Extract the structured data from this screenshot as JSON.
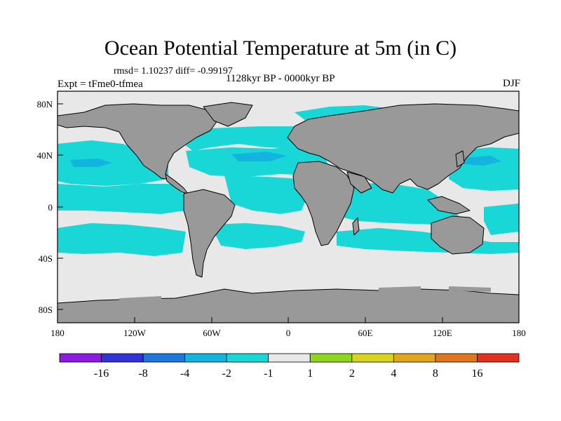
{
  "title": "Ocean Potential Temperature at 5m (in C)",
  "stats": "rmsd= 1.10237 diff= -0.99197",
  "experiment": "Expt = tFme0-tfmea",
  "period": "1128kyr BP - 0000kyr BP",
  "season": "DJF",
  "axes": {
    "x_ticks": [
      "180",
      "120W",
      "60W",
      "0",
      "60E",
      "120E",
      "180"
    ],
    "y_ticks": [
      "80N",
      "40N",
      "0",
      "40S",
      "80S"
    ]
  },
  "colors": {
    "land": "#999999",
    "no_change": "#e8e8e8",
    "cool_1": "#19d7d7",
    "cool_2": "#14b4e0",
    "coast": "#000000"
  },
  "colorbar": {
    "labels": [
      "-16",
      "-8",
      "-4",
      "-2",
      "-1",
      "1",
      "2",
      "4",
      "8",
      "16"
    ],
    "colors": [
      "#8a1be0",
      "#3232d6",
      "#1e78dc",
      "#14b4e0",
      "#19d7d7",
      "#e8e8e8",
      "#8fd61e",
      "#d7d31e",
      "#e0a61e",
      "#e0761e",
      "#e0321e"
    ]
  }
}
